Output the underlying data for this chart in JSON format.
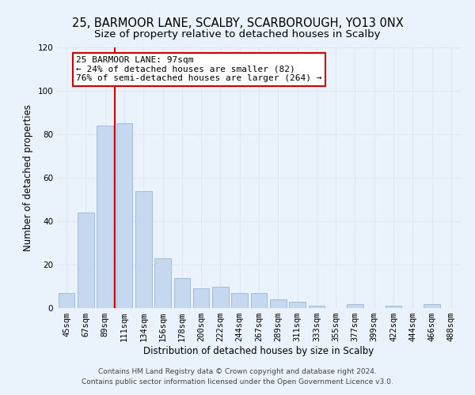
{
  "title": "25, BARMOOR LANE, SCALBY, SCARBOROUGH, YO13 0NX",
  "subtitle": "Size of property relative to detached houses in Scalby",
  "xlabel": "Distribution of detached houses by size in Scalby",
  "ylabel": "Number of detached properties",
  "bin_labels": [
    "45sqm",
    "67sqm",
    "89sqm",
    "111sqm",
    "134sqm",
    "156sqm",
    "178sqm",
    "200sqm",
    "222sqm",
    "244sqm",
    "267sqm",
    "289sqm",
    "311sqm",
    "333sqm",
    "355sqm",
    "377sqm",
    "399sqm",
    "422sqm",
    "444sqm",
    "466sqm",
    "488sqm"
  ],
  "bar_values": [
    7,
    44,
    84,
    85,
    54,
    23,
    14,
    9,
    10,
    7,
    7,
    4,
    3,
    1,
    0,
    2,
    0,
    1,
    0,
    2,
    0
  ],
  "bar_color": "#c5d8f0",
  "bar_edge_color": "#a0bcd8",
  "grid_color": "#dce9f5",
  "background_color": "#eaf2fb",
  "vline_x_index": 2,
  "vline_color": "#cc0000",
  "annotation_line1": "25 BARMOOR LANE: 97sqm",
  "annotation_line2": "← 24% of detached houses are smaller (82)",
  "annotation_line3": "76% of semi-detached houses are larger (264) →",
  "annotation_box_color": "#ffffff",
  "annotation_box_edge_color": "#cc0000",
  "ylim": [
    0,
    120
  ],
  "yticks": [
    0,
    20,
    40,
    60,
    80,
    100,
    120
  ],
  "footer_text": "Contains HM Land Registry data © Crown copyright and database right 2024.\nContains public sector information licensed under the Open Government Licence v3.0.",
  "title_fontsize": 10.5,
  "subtitle_fontsize": 9.5,
  "axis_label_fontsize": 8.5,
  "tick_fontsize": 7.5,
  "annotation_fontsize": 8,
  "footer_fontsize": 6.5
}
